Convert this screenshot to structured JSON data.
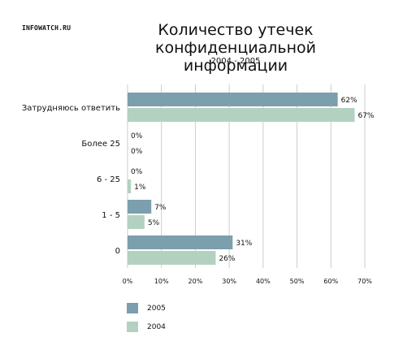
{
  "brand": "INFOWATCH.RU",
  "chart_data": {
    "type": "bar",
    "orientation": "horizontal",
    "title_line1": "Количество утечек",
    "title_line2": "конфиденциальной информации",
    "subtitle": "2004 - 2005",
    "categories": [
      "Затрудняюсь ответить",
      "Более 25",
      "6 - 25",
      "1 - 5",
      "0"
    ],
    "series": [
      {
        "name": "2005",
        "color": "#7b9fac",
        "values": [
          62,
          0,
          0,
          7,
          31
        ],
        "labels": [
          "62%",
          "0%",
          "0%",
          "7%",
          "31%"
        ]
      },
      {
        "name": "2004",
        "color": "#b3d1c0",
        "values": [
          67,
          0,
          1,
          5,
          26
        ],
        "labels": [
          "67%",
          "0%",
          "1%",
          "5%",
          "26%"
        ]
      }
    ],
    "xlim": [
      0,
      70
    ],
    "xticks": [
      "0%",
      "10%",
      "20%",
      "30%",
      "40%",
      "50%",
      "60%",
      "70%"
    ],
    "grid": true,
    "legend_position": "bottom-left"
  }
}
